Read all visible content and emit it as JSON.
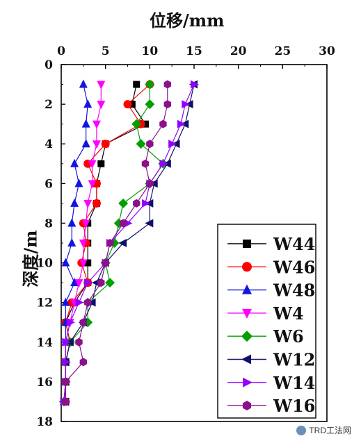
{
  "chart_data": {
    "type": "line",
    "xlabel": "位移/mm",
    "ylabel": "深度/m",
    "xlim": [
      0,
      30
    ],
    "ylim": [
      0,
      18
    ],
    "y_reversed": true,
    "x_ticks": [
      0,
      5,
      10,
      15,
      20,
      25,
      30
    ],
    "y_ticks": [
      0,
      2,
      4,
      6,
      8,
      10,
      12,
      14,
      16,
      18
    ],
    "x_axis_position": "top",
    "grid": false,
    "legend_position": "bottom-right",
    "series": [
      {
        "name": "W44",
        "color": "#000000",
        "marker": "square",
        "points": [
          [
            8.5,
            1
          ],
          [
            8,
            2
          ],
          [
            9.5,
            3
          ],
          [
            5,
            4
          ],
          [
            4.5,
            5
          ],
          [
            4,
            6
          ],
          [
            4,
            7
          ],
          [
            3,
            8
          ],
          [
            3,
            9
          ],
          [
            3,
            10
          ],
          [
            3,
            11
          ],
          [
            1.5,
            12
          ],
          [
            0.5,
            13
          ],
          [
            1,
            14
          ],
          [
            0.5,
            15
          ],
          [
            0.5,
            16
          ],
          [
            0.5,
            17
          ]
        ]
      },
      {
        "name": "W46",
        "color": "#ff0000",
        "marker": "circle",
        "points": [
          [
            10,
            1
          ],
          [
            7.5,
            2
          ],
          [
            9,
            3
          ],
          [
            5,
            4
          ],
          [
            3,
            5
          ],
          [
            4,
            6
          ],
          [
            4,
            7
          ],
          [
            2.5,
            8
          ],
          [
            2.8,
            9
          ],
          [
            2.3,
            10
          ],
          [
            3,
            11
          ],
          [
            1.2,
            12
          ],
          [
            0.5,
            13
          ],
          [
            1,
            14
          ],
          [
            0.5,
            15
          ],
          [
            0.5,
            16
          ],
          [
            0.5,
            17
          ]
        ]
      },
      {
        "name": "W48",
        "color": "#1515e0",
        "marker": "triangle-up",
        "points": [
          [
            2.5,
            1
          ],
          [
            3,
            2
          ],
          [
            2.8,
            3
          ],
          [
            2.8,
            4
          ],
          [
            1.5,
            5
          ],
          [
            2,
            6
          ],
          [
            1.5,
            7
          ],
          [
            1.2,
            8
          ],
          [
            1.2,
            9
          ],
          [
            0.5,
            10
          ],
          [
            1.5,
            11
          ],
          [
            0.5,
            12
          ],
          [
            0.5,
            13
          ],
          [
            0.5,
            14
          ],
          [
            0.5,
            15
          ],
          [
            0.5,
            16
          ],
          [
            0.3,
            17
          ]
        ]
      },
      {
        "name": "W4",
        "color": "#ff00ff",
        "marker": "triangle-down",
        "points": [
          [
            4.5,
            1
          ],
          [
            4.5,
            2
          ],
          [
            4,
            3
          ],
          [
            4,
            4
          ],
          [
            3.5,
            5
          ],
          [
            3.5,
            6
          ],
          [
            3,
            7
          ],
          [
            2.8,
            8
          ],
          [
            2.5,
            9
          ],
          [
            2.5,
            10
          ],
          [
            2,
            11
          ],
          [
            1.5,
            12
          ],
          [
            1,
            13
          ],
          [
            0.5,
            14
          ],
          [
            0.5,
            15
          ],
          [
            0.5,
            16
          ],
          [
            0.3,
            17
          ]
        ]
      },
      {
        "name": "W6",
        "color": "#00a000",
        "marker": "diamond",
        "points": [
          [
            10,
            1
          ],
          [
            10,
            2
          ],
          [
            8.5,
            3
          ],
          [
            9,
            4
          ],
          [
            11.5,
            5
          ],
          [
            10,
            6
          ],
          [
            7,
            7
          ],
          [
            6.5,
            8
          ],
          [
            6,
            9
          ],
          [
            5,
            10
          ],
          [
            5.5,
            11
          ],
          [
            3,
            12
          ],
          [
            3,
            13
          ],
          [
            1,
            14
          ],
          [
            0.5,
            15
          ],
          [
            0.5,
            16
          ],
          [
            0.3,
            17
          ]
        ]
      },
      {
        "name": "W12",
        "color": "#10106a",
        "marker": "triangle-left",
        "points": [
          [
            15,
            1
          ],
          [
            14.5,
            2
          ],
          [
            14,
            3
          ],
          [
            13,
            4
          ],
          [
            12,
            5
          ],
          [
            10.5,
            6
          ],
          [
            10,
            7
          ],
          [
            10,
            8
          ],
          [
            7,
            9
          ],
          [
            5,
            10
          ],
          [
            4,
            11
          ],
          [
            3.5,
            12
          ],
          [
            2.5,
            13
          ],
          [
            1,
            14
          ],
          [
            0.5,
            15
          ],
          [
            0.5,
            16
          ],
          [
            0.5,
            17
          ]
        ]
      },
      {
        "name": "W14",
        "color": "#9400ff",
        "marker": "triangle-right",
        "points": [
          [
            15,
            1
          ],
          [
            14,
            2
          ],
          [
            13.5,
            3
          ],
          [
            12.5,
            4
          ],
          [
            11.5,
            5
          ],
          [
            10,
            6
          ],
          [
            9.5,
            7
          ],
          [
            7.5,
            8
          ],
          [
            5.5,
            9
          ],
          [
            5,
            10
          ],
          [
            3,
            11
          ],
          [
            2,
            12
          ],
          [
            1,
            13
          ],
          [
            0.5,
            14
          ],
          [
            0.5,
            15
          ],
          [
            0.5,
            16
          ],
          [
            0.3,
            17
          ]
        ]
      },
      {
        "name": "W16",
        "color": "#8b108b",
        "marker": "hexagon",
        "points": [
          [
            12,
            1
          ],
          [
            12,
            2
          ],
          [
            11.5,
            3
          ],
          [
            10,
            4
          ],
          [
            9.5,
            5
          ],
          [
            10,
            6
          ],
          [
            8.5,
            7
          ],
          [
            7,
            8
          ],
          [
            5.5,
            9
          ],
          [
            5,
            10
          ],
          [
            4.5,
            11
          ],
          [
            3,
            12
          ],
          [
            2.5,
            13
          ],
          [
            2,
            14
          ],
          [
            2.5,
            15
          ],
          [
            0.5,
            16
          ],
          [
            0.5,
            17
          ]
        ]
      }
    ]
  },
  "watermark": {
    "text": "TRD工法网"
  }
}
